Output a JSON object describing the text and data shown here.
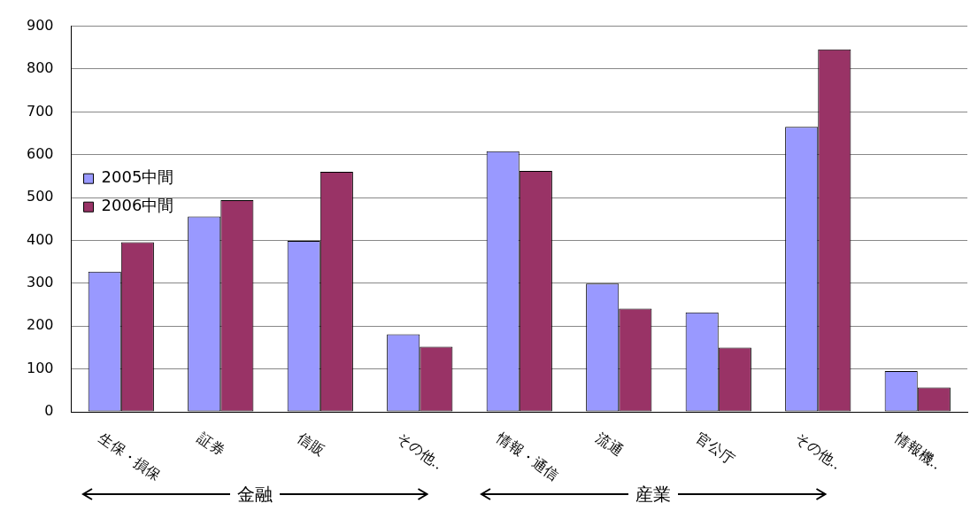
{
  "chart_data": {
    "type": "bar",
    "categories": [
      "生保・損保",
      "証券",
      "信販",
      "その他‥",
      "情報・通信",
      "流通",
      "官公庁",
      "その他‥",
      "情報機‥"
    ],
    "series": [
      {
        "name": "2005中間",
        "color": "#9999ff",
        "values": [
          327,
          456,
          399,
          181,
          608,
          299,
          232,
          665,
          95
        ]
      },
      {
        "name": "2006中間",
        "color": "#993366",
        "values": [
          396,
          494,
          560,
          152,
          562,
          241,
          150,
          846,
          57
        ]
      }
    ],
    "ylim": [
      0,
      900
    ],
    "yticks": [
      0,
      100,
      200,
      300,
      400,
      500,
      600,
      700,
      800,
      900
    ],
    "grid": "y",
    "legend": "top",
    "annotations": [
      "金融",
      "産業"
    ]
  }
}
